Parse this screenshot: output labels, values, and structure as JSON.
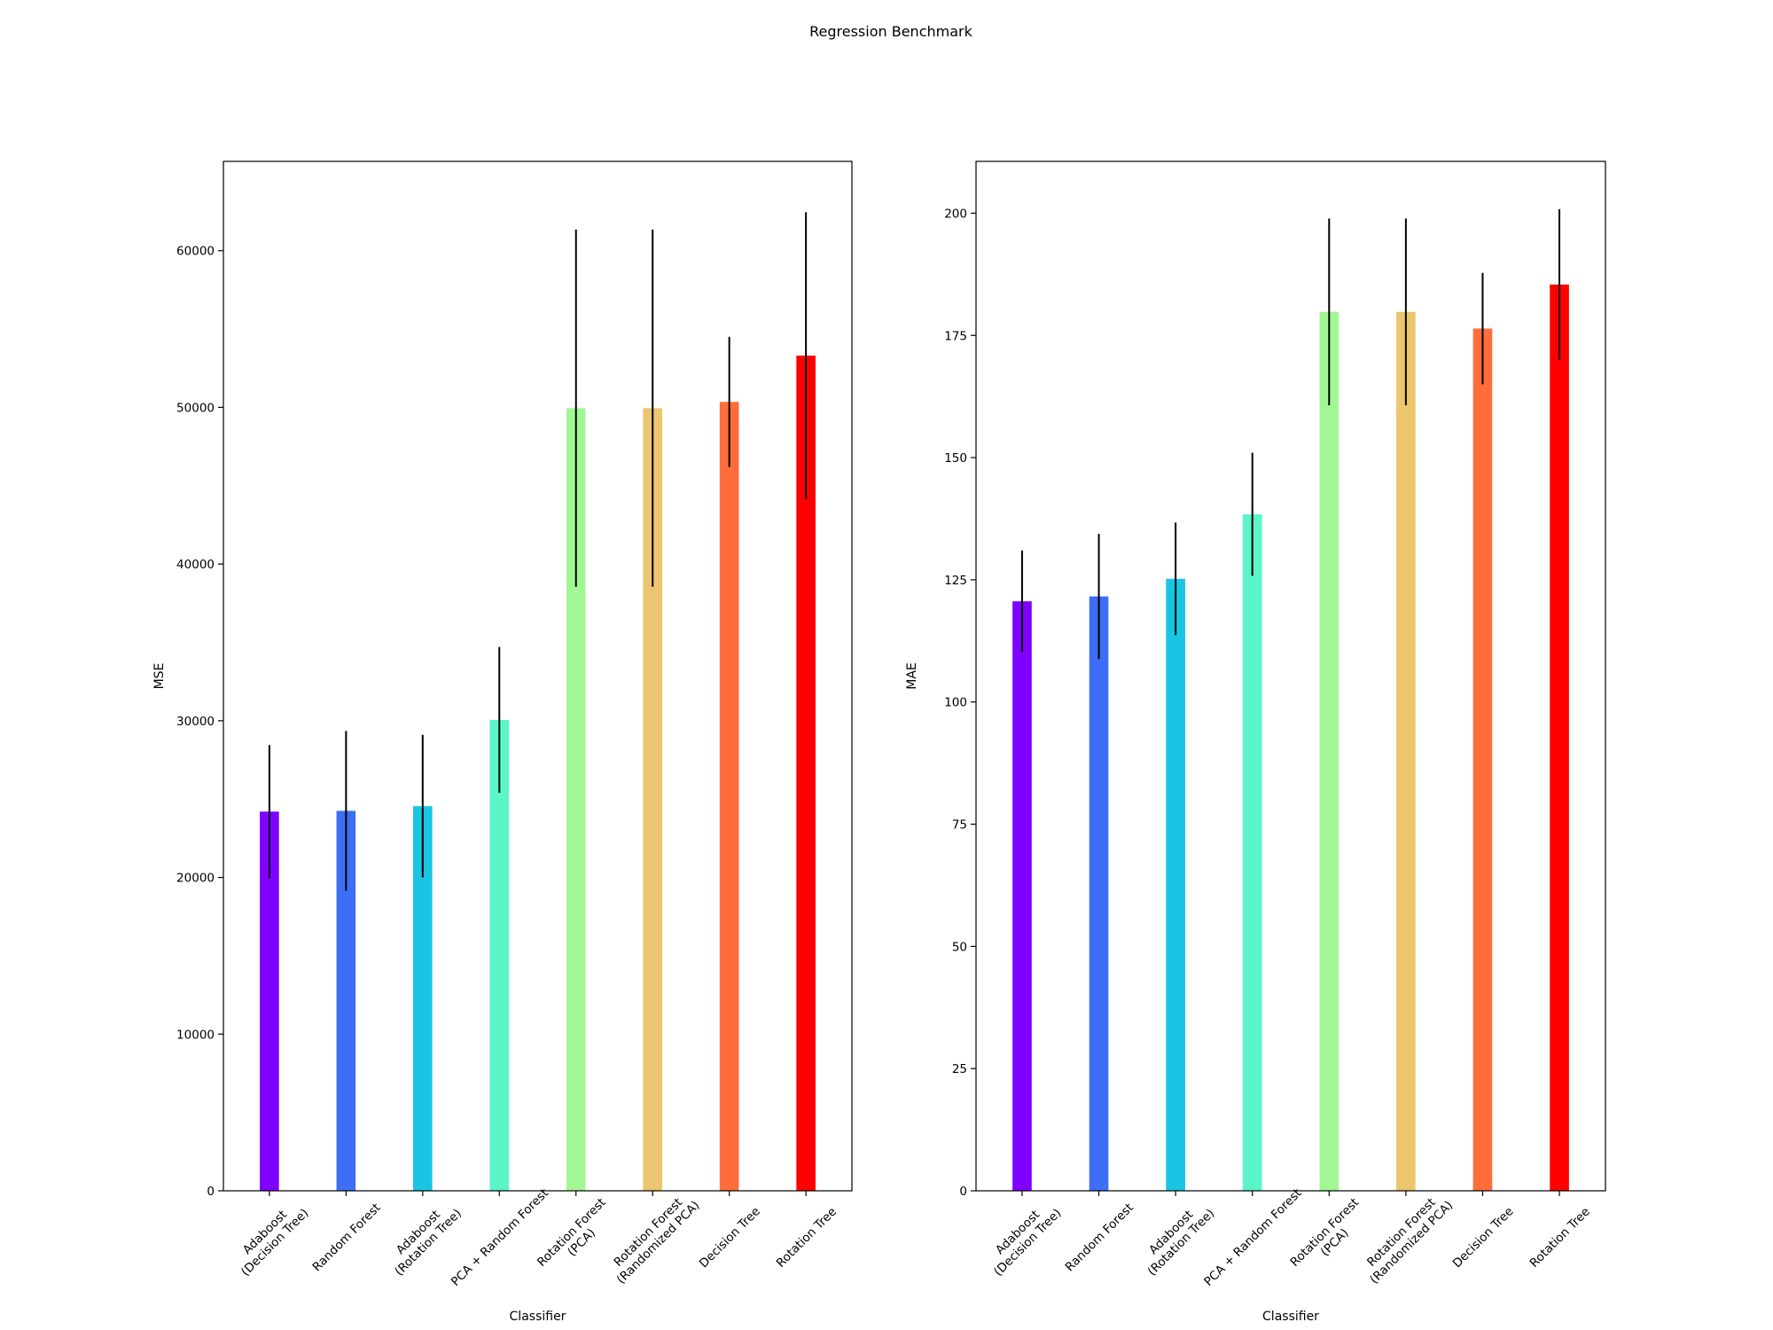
{
  "figure": {
    "title": "Regression Benchmark"
  },
  "chart_data": [
    {
      "type": "bar",
      "title": "",
      "xlabel": "Classifier",
      "ylabel": "MSE",
      "ylim": [
        0,
        65700
      ],
      "yticks": [
        0,
        10000,
        20000,
        30000,
        40000,
        50000,
        60000
      ],
      "grid": false,
      "categories": [
        [
          "Adaboost",
          "(Decision Tree)"
        ],
        [
          "Random Forest"
        ],
        [
          "Adaboost",
          "(Rotation Tree)"
        ],
        [
          "PCA + Random Forest"
        ],
        [
          "Rotation Forest",
          "(PCA)"
        ],
        [
          "Rotation Forest",
          "(Randomized PCA)"
        ],
        [
          "Decision Tree"
        ],
        [
          "Rotation Tree"
        ]
      ],
      "values": [
        24200,
        24250,
        24550,
        30050,
        49950,
        49950,
        50350,
        53300
      ],
      "errors": [
        4250,
        5100,
        4550,
        4650,
        11400,
        11400,
        4150,
        9150
      ],
      "colors": [
        "#8000ff",
        "#3d6ef6",
        "#18c6e3",
        "#5af6c9",
        "#a2f794",
        "#ecc66e",
        "#ff6d3b",
        "#ff0000"
      ]
    },
    {
      "type": "bar",
      "title": "",
      "xlabel": "Classifier",
      "ylabel": "MAE",
      "ylim": [
        0,
        210.6
      ],
      "yticks": [
        0,
        25,
        50,
        75,
        100,
        125,
        150,
        175,
        200
      ],
      "grid": false,
      "categories": [
        [
          "Adaboost",
          "(Decision Tree)"
        ],
        [
          "Random Forest"
        ],
        [
          "Adaboost",
          "(Rotation Tree)"
        ],
        [
          "PCA + Random Forest"
        ],
        [
          "Rotation Forest",
          "(PCA)"
        ],
        [
          "Rotation Forest",
          "(Randomized PCA)"
        ],
        [
          "Decision Tree"
        ],
        [
          "Rotation Tree"
        ]
      ],
      "values": [
        120.6,
        121.6,
        125.2,
        138.4,
        179.8,
        179.8,
        176.4,
        185.4
      ],
      "errors": [
        10.4,
        12.8,
        11.5,
        12.6,
        19.1,
        19.1,
        11.4,
        15.4
      ],
      "colors": [
        "#8000ff",
        "#3d6ef6",
        "#18c6e3",
        "#5af6c9",
        "#a2f794",
        "#ecc66e",
        "#ff6d3b",
        "#ff0000"
      ]
    }
  ]
}
